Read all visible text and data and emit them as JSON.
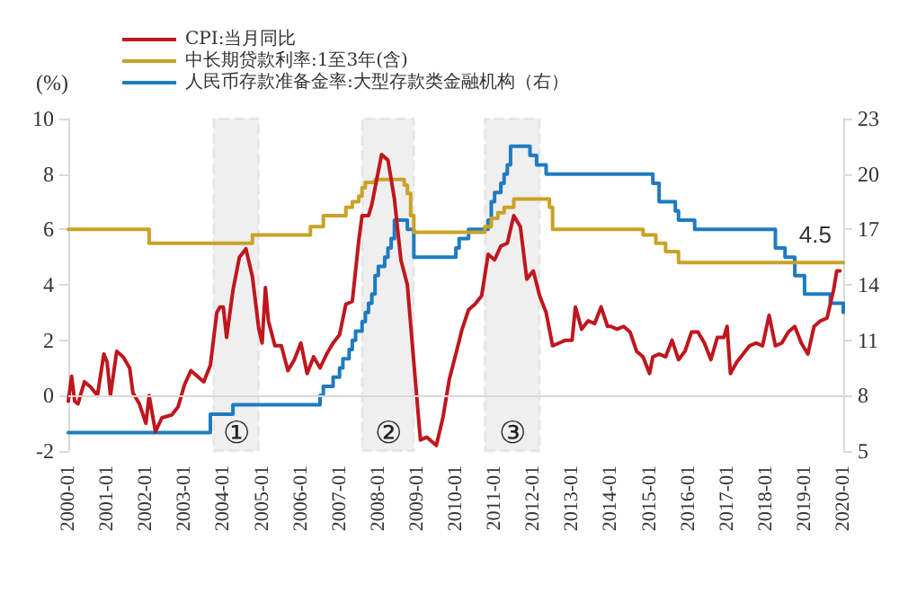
{
  "chart_data": {
    "type": "line",
    "ylabel": "(%)",
    "xlim": [
      "2000-01",
      "2020-01"
    ],
    "xticks": [
      "2000-01",
      "2001-01",
      "2002-01",
      "2003-01",
      "2004-01",
      "2005-01",
      "2006-01",
      "2007-01",
      "2008-01",
      "2009-01",
      "2010-01",
      "2011-01",
      "2012-01",
      "2013-01",
      "2014-01",
      "2015-01",
      "2016-01",
      "2017-01",
      "2018-01",
      "2019-01",
      "2020-01"
    ],
    "ylim": [
      -2,
      10
    ],
    "yticks": [
      -2,
      0,
      2,
      4,
      6,
      8,
      10
    ],
    "y2lim": [
      5,
      23
    ],
    "y2ticks": [
      5,
      8,
      11,
      14,
      17,
      20,
      23
    ],
    "grid": false,
    "legend": "top left",
    "series": [
      {
        "name": "CPI:当月同比",
        "type": "line",
        "color": "#c0161e",
        "x": [
          "2000-01",
          "2000-02",
          "2000-03",
          "2000-04",
          "2000-06",
          "2000-08",
          "2000-10",
          "2000-12",
          "2001-01",
          "2001-02",
          "2001-04",
          "2001-06",
          "2001-08",
          "2001-09",
          "2001-11",
          "2002-01",
          "2002-02",
          "2002-04",
          "2002-06",
          "2002-09",
          "2002-11",
          "2003-01",
          "2003-03",
          "2003-05",
          "2003-07",
          "2003-09",
          "2003-11",
          "2003-12",
          "2004-01",
          "2004-02",
          "2004-04",
          "2004-06",
          "2004-08",
          "2004-10",
          "2004-12",
          "2005-01",
          "2005-02",
          "2005-03",
          "2005-05",
          "2005-07",
          "2005-09",
          "2005-11",
          "2006-01",
          "2006-03",
          "2006-05",
          "2006-07",
          "2006-09",
          "2006-11",
          "2007-01",
          "2007-03",
          "2007-05",
          "2007-07",
          "2007-08",
          "2007-10",
          "2007-11",
          "2008-02",
          "2008-04",
          "2008-06",
          "2008-08",
          "2008-10",
          "2008-12",
          "2009-02",
          "2009-04",
          "2009-07",
          "2009-09",
          "2009-11",
          "2010-01",
          "2010-03",
          "2010-05",
          "2010-07",
          "2010-09",
          "2010-11",
          "2011-01",
          "2011-03",
          "2011-05",
          "2011-07",
          "2011-09",
          "2011-11",
          "2012-01",
          "2012-03",
          "2012-05",
          "2012-07",
          "2012-09",
          "2012-11",
          "2013-01",
          "2013-02",
          "2013-04",
          "2013-06",
          "2013-08",
          "2013-10",
          "2013-12",
          "2014-01",
          "2014-03",
          "2014-05",
          "2014-07",
          "2014-09",
          "2014-11",
          "2015-01",
          "2015-02",
          "2015-04",
          "2015-06",
          "2015-08",
          "2015-10",
          "2015-12",
          "2016-02",
          "2016-04",
          "2016-06",
          "2016-08",
          "2016-10",
          "2016-12",
          "2017-01",
          "2017-02",
          "2017-04",
          "2017-06",
          "2017-08",
          "2017-10",
          "2017-12",
          "2018-02",
          "2018-04",
          "2018-06",
          "2018-08",
          "2018-10",
          "2018-12",
          "2019-02",
          "2019-04",
          "2019-06",
          "2019-08",
          "2019-10",
          "2019-11",
          "2019-12"
        ],
        "values": [
          -0.2,
          0.7,
          -0.2,
          -0.3,
          0.5,
          0.3,
          0.0,
          1.5,
          1.2,
          0.0,
          1.6,
          1.4,
          1.0,
          0.1,
          -0.3,
          -1.0,
          0.0,
          -1.3,
          -0.8,
          -0.7,
          -0.4,
          0.4,
          0.9,
          0.7,
          0.5,
          1.1,
          3.0,
          3.2,
          3.2,
          2.1,
          3.8,
          5.0,
          5.3,
          4.3,
          2.4,
          1.9,
          3.9,
          2.7,
          1.8,
          1.8,
          0.9,
          1.3,
          1.9,
          0.8,
          1.4,
          1.0,
          1.5,
          1.9,
          2.2,
          3.3,
          3.4,
          5.6,
          6.5,
          6.5,
          6.9,
          8.7,
          8.5,
          7.1,
          4.9,
          4.0,
          1.2,
          -1.6,
          -1.5,
          -1.8,
          -0.8,
          0.6,
          1.5,
          2.4,
          3.1,
          3.3,
          3.6,
          5.1,
          4.9,
          5.4,
          5.5,
          6.5,
          6.1,
          4.2,
          4.5,
          3.6,
          3.0,
          1.8,
          1.9,
          2.0,
          2.0,
          3.2,
          2.4,
          2.7,
          2.6,
          3.2,
          2.5,
          2.5,
          2.4,
          2.5,
          2.3,
          1.6,
          1.4,
          0.8,
          1.4,
          1.5,
          1.4,
          2.0,
          1.3,
          1.6,
          2.3,
          2.3,
          1.9,
          1.3,
          2.1,
          2.1,
          2.5,
          0.8,
          1.2,
          1.5,
          1.8,
          1.9,
          1.8,
          2.9,
          1.8,
          1.9,
          2.3,
          2.5,
          1.9,
          1.5,
          2.5,
          2.7,
          2.8,
          3.8,
          4.5,
          4.5
        ]
      },
      {
        "name": "中长期贷款利率:1至3年(含)",
        "type": "step",
        "color": "#c9a227",
        "x": [
          "2000-01",
          "2002-02",
          "2004-10",
          "2006-04",
          "2006-08",
          "2007-03",
          "2007-05",
          "2007-07",
          "2007-08",
          "2007-09",
          "2007-12",
          "2008-09",
          "2008-10",
          "2008-11",
          "2008-12",
          "2010-10",
          "2010-12",
          "2011-02",
          "2011-04",
          "2011-07",
          "2012-06",
          "2012-07",
          "2014-11",
          "2015-03",
          "2015-06",
          "2015-10",
          "2020-01"
        ],
        "values": [
          6.0,
          5.5,
          5.8,
          6.1,
          6.5,
          6.8,
          7.0,
          7.2,
          7.5,
          7.7,
          7.8,
          7.6,
          7.3,
          6.5,
          5.9,
          6.1,
          6.4,
          6.6,
          6.8,
          7.1,
          6.8,
          6.0,
          5.8,
          5.5,
          5.2,
          4.8,
          4.8
        ]
      },
      {
        "name": "人民币存款准备金率:大型存款类金融机构（右）",
        "type": "step",
        "axis": "y2",
        "color": "#1f7bc1",
        "x": [
          "2000-01",
          "2003-09",
          "2004-04",
          "2006-07",
          "2006-08",
          "2006-11",
          "2007-01",
          "2007-02",
          "2007-04",
          "2007-05",
          "2007-06",
          "2007-08",
          "2007-09",
          "2007-10",
          "2007-11",
          "2007-12",
          "2008-01",
          "2008-03",
          "2008-04",
          "2008-05",
          "2008-06",
          "2008-10",
          "2008-12",
          "2010-01",
          "2010-02",
          "2010-05",
          "2010-11",
          "2010-12",
          "2011-01",
          "2011-03",
          "2011-04",
          "2011-05",
          "2011-06",
          "2011-12",
          "2012-02",
          "2012-05",
          "2015-02",
          "2015-04",
          "2015-09",
          "2015-10",
          "2016-03",
          "2018-04",
          "2018-07",
          "2018-10",
          "2019-01",
          "2019-09",
          "2020-01"
        ],
        "values": [
          6,
          7,
          7.5,
          8,
          8.5,
          9,
          9.5,
          10,
          10.5,
          11,
          11.5,
          12,
          12.5,
          13,
          13.5,
          14.5,
          15,
          15.5,
          16,
          16.5,
          17.5,
          17,
          15.5,
          16,
          16.5,
          17,
          17.5,
          18.5,
          19,
          19.5,
          20,
          20.5,
          21.5,
          21,
          20.5,
          20,
          19.5,
          18.5,
          18,
          17.5,
          17,
          16,
          15.5,
          14.5,
          13.5,
          13,
          12.5
        ]
      }
    ],
    "ref_lines": [
      {
        "axis": "y",
        "value": 0,
        "color": "#d9d9d9"
      }
    ],
    "bands": [
      {
        "axis": "x",
        "from": "2003-10",
        "to": "2004-12",
        "label": "①",
        "color": "#333333"
      },
      {
        "axis": "x",
        "from": "2007-08",
        "to": "2008-12",
        "label": "②",
        "color": "#333333"
      },
      {
        "axis": "x",
        "from": "2010-10",
        "to": "2012-03",
        "label": "③",
        "color": "#333333"
      }
    ],
    "annotations": [
      {
        "text": "4.5",
        "x": "2019-11",
        "y": 4.5
      }
    ]
  }
}
